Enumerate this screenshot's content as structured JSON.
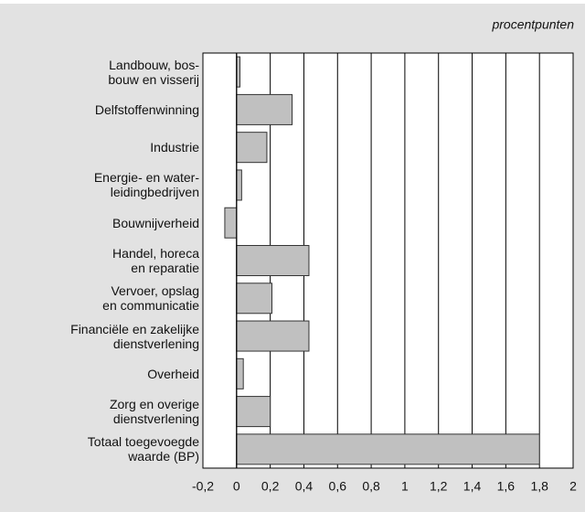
{
  "chart_data": {
    "type": "bar",
    "orientation": "horizontal",
    "subtitle": "procentpunten",
    "categories": [
      "Landbouw, bos-\nbouw en visserij",
      "Delfstoffenwinning",
      "Industrie",
      "Energie- en water-\nleidingbedrijven",
      "Bouwnijverheid",
      "Handel, horeca\nen reparatie",
      "Vervoer, opslag\nen communicatie",
      "Financiële en zakelijke\ndienstverlening",
      "Overheid",
      "Zorg en overige\ndienstverlening",
      "Totaal toegevoegde\nwaarde (BP)"
    ],
    "values": [
      0.02,
      0.33,
      0.18,
      0.03,
      -0.07,
      0.43,
      0.21,
      0.43,
      0.04,
      0.2,
      1.8
    ],
    "color": "#c0c0c0",
    "xlim": [
      -0.2,
      2
    ],
    "xticks": [
      {
        "value": -0.2,
        "label": "-0,2"
      },
      0,
      {
        "value": 0.2,
        "label": "0,2"
      },
      {
        "value": 0.4,
        "label": "0,4"
      },
      {
        "value": 0.6,
        "label": "0,6"
      },
      {
        "value": 0.8,
        "label": "0,8"
      },
      1,
      {
        "value": 1.2,
        "label": "1,2"
      },
      {
        "value": 1.4,
        "label": "1,4"
      },
      {
        "value": 1.6,
        "label": "1,6"
      },
      {
        "value": 1.8,
        "label": "1,8"
      },
      2
    ],
    "grid": true
  }
}
